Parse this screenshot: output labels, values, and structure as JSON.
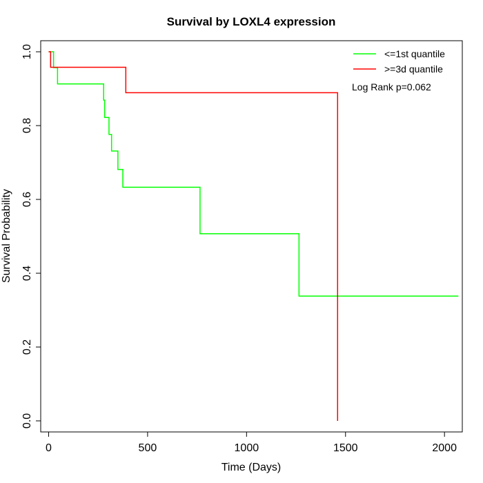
{
  "chart_data": {
    "type": "line",
    "title": "Survival by LOXL4 expression",
    "xlabel": "Time (Days)",
    "ylabel": "Survival Probability",
    "xlim": [
      -40,
      2090
    ],
    "ylim": [
      -0.03,
      1.03
    ],
    "xticks": [
      0,
      500,
      1000,
      1500,
      2000
    ],
    "yticks": [
      0.0,
      0.2,
      0.4,
      0.6,
      0.8,
      1.0
    ],
    "xtick_labels": [
      "0",
      "500",
      "1000",
      "1500",
      "2000"
    ],
    "ytick_labels": [
      "0.0",
      "0.2",
      "0.4",
      "0.6",
      "0.8",
      "1.0"
    ],
    "grid": false,
    "legend_position": "top-right",
    "annotation": "Log Rank p=0.062",
    "series": [
      {
        "name": "<=1st quantile",
        "color": "#00ff00",
        "steps": [
          [
            0,
            1.0
          ],
          [
            25,
            0.957
          ],
          [
            45,
            0.913
          ],
          [
            278,
            0.869
          ],
          [
            283,
            0.822
          ],
          [
            305,
            0.776
          ],
          [
            318,
            0.731
          ],
          [
            350,
            0.681
          ],
          [
            375,
            0.633
          ],
          [
            765,
            0.507
          ],
          [
            1265,
            0.338
          ],
          [
            2070,
            0.338
          ]
        ]
      },
      {
        "name": ">=3d quantile",
        "color": "#ff0000",
        "steps": [
          [
            0,
            1.0
          ],
          [
            10,
            0.958
          ],
          [
            390,
            0.889
          ],
          [
            1460,
            0.0
          ]
        ]
      }
    ]
  }
}
